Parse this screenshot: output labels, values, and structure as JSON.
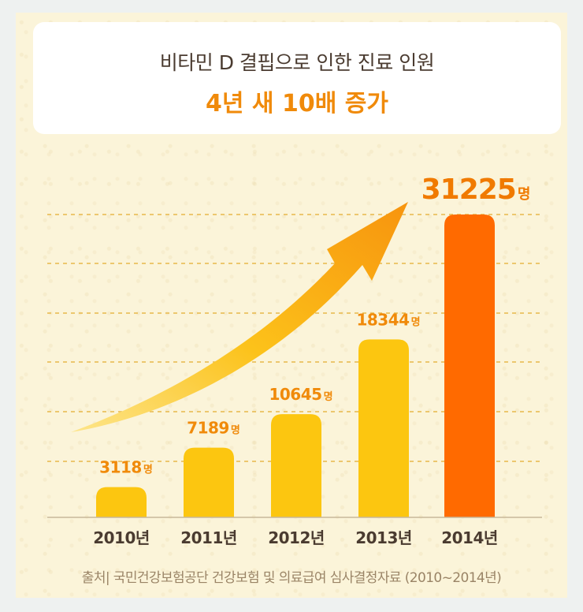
{
  "header": {
    "title": "비타민 D 결핍으로 인한 진료 인원",
    "subtitle": "4년 새 10배 증가"
  },
  "source": "출처| 국민건강보험공단 건강보험 및 의료급여 심사결정자료 (2010~2014년)",
  "chart_data": {
    "type": "bar",
    "categories": [
      "2010년",
      "2011년",
      "2012년",
      "2013년",
      "2014년"
    ],
    "values": [
      3118,
      7189,
      10645,
      18344,
      31225
    ],
    "value_labels": [
      "3118",
      "7189",
      "10645",
      "18344",
      "31225"
    ],
    "unit": "명",
    "ylim": [
      0,
      32000
    ],
    "grid": true,
    "colors": {
      "bar": "#fcc610",
      "highlight_bar": "#ff6a00",
      "label": "#f08a0a",
      "highlight_label": "#f07a00",
      "axis_text": "#4a3b30",
      "grid": "#e8b84a"
    }
  }
}
